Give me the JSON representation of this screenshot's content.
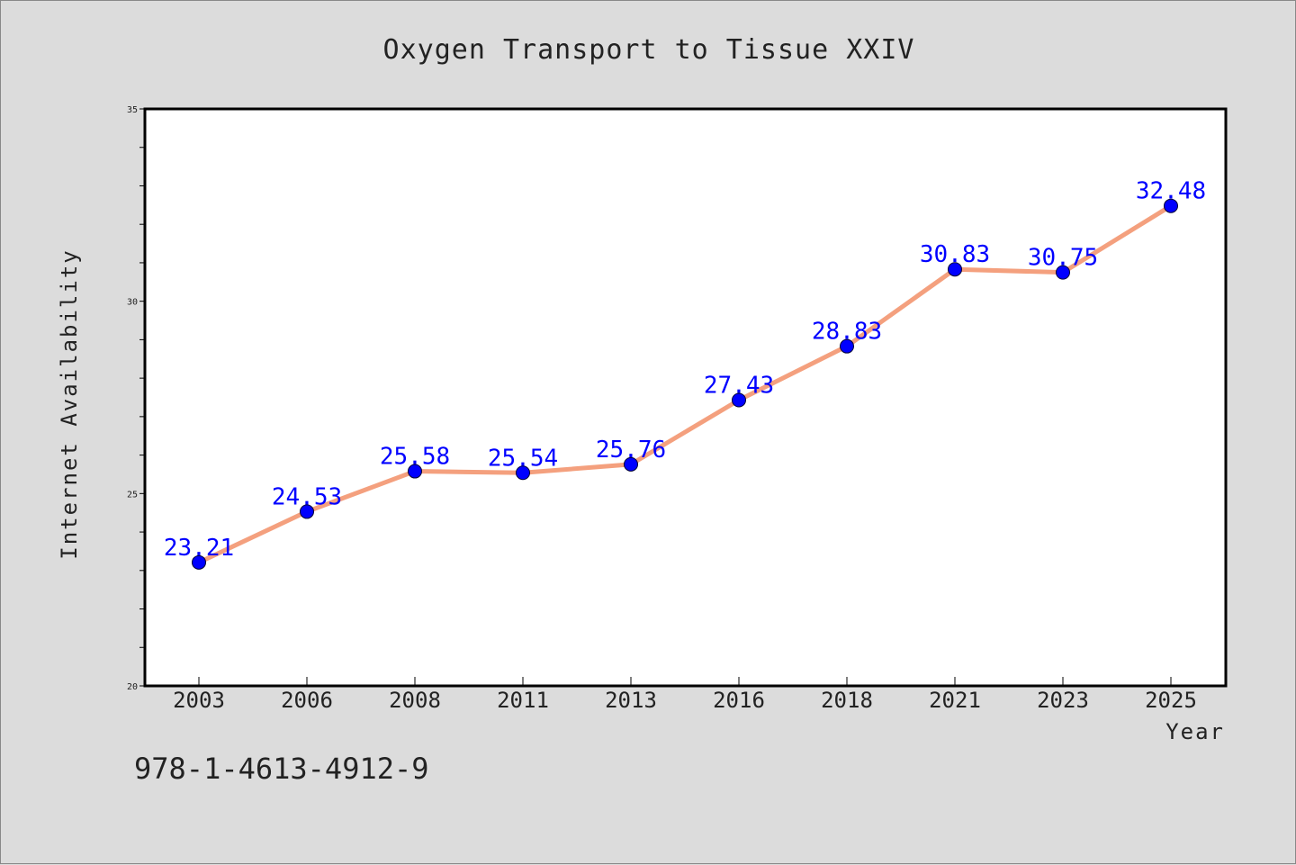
{
  "chart_data": {
    "type": "line",
    "title": "Oxygen Transport to Tissue XXIV",
    "xlabel": "Year",
    "ylabel": "Internet Availability",
    "categories": [
      "2003",
      "2006",
      "2008",
      "2011",
      "2013",
      "2016",
      "2018",
      "2021",
      "2023",
      "2025"
    ],
    "series": [
      {
        "values": [
          23.21,
          24.53,
          25.58,
          25.54,
          25.76,
          27.43,
          28.83,
          30.83,
          30.75,
          32.48
        ],
        "data_labels": [
          "23.21",
          "24.53",
          "25.58",
          "25.54",
          "25.76",
          "27.43",
          "28.83",
          "30.83",
          "30.75",
          "32.48"
        ],
        "line_color": "#f4a07e",
        "marker_color": "#0000ff"
      }
    ],
    "ylim": [
      20,
      35
    ],
    "yticks": [
      "20",
      "25",
      "30",
      "35"
    ],
    "grid": false,
    "legend": "none"
  },
  "footnote": "978-1-4613-4912-9"
}
